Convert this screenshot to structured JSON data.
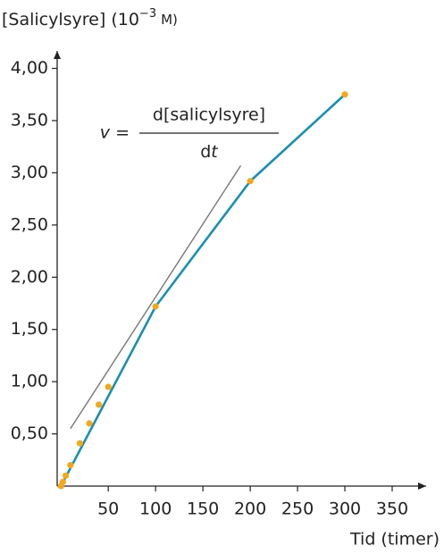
{
  "chart_data": {
    "type": "scatter-line",
    "ylabel": {
      "text": "[Salicylsyre] (10",
      "sup": "−3",
      "unit": "M)"
    },
    "xlabel": "Tid (timer)",
    "equation": {
      "lhs": "v =",
      "numerator": "d[salicylsyre]",
      "denominator_d": "d",
      "denominator_t": "t"
    },
    "xlim": [
      -4,
      384
    ],
    "ylim": [
      0,
      4.15
    ],
    "xticks": [
      50,
      100,
      150,
      200,
      250,
      300,
      350
    ],
    "yticks": [
      {
        "value": 0.5,
        "label": "0,50"
      },
      {
        "value": 1.0,
        "label": "1,00"
      },
      {
        "value": 1.5,
        "label": "1,50"
      },
      {
        "value": 2.0,
        "label": "2,00"
      },
      {
        "value": 2.5,
        "label": "2,50"
      },
      {
        "value": 3.0,
        "label": "3,00"
      },
      {
        "value": 3.5,
        "label": "3,50"
      },
      {
        "value": 4.0,
        "label": "4,00"
      }
    ],
    "series": [
      {
        "kind": "line",
        "color": "#1a8fb0",
        "x": [
          0,
          100,
          200,
          300
        ],
        "values": [
          0,
          1.72,
          2.92,
          3.75
        ]
      },
      {
        "kind": "tangent",
        "color": "#777777",
        "x": [
          10,
          190
        ],
        "values": [
          0.55,
          3.07
        ]
      },
      {
        "kind": "points",
        "color": "#f2a91e",
        "x": [
          0,
          2,
          5,
          10,
          20,
          30,
          40,
          50,
          100,
          200,
          300
        ],
        "values": [
          0,
          0.04,
          0.1,
          0.2,
          0.41,
          0.6,
          0.78,
          0.95,
          1.72,
          2.92,
          3.75
        ]
      }
    ]
  }
}
